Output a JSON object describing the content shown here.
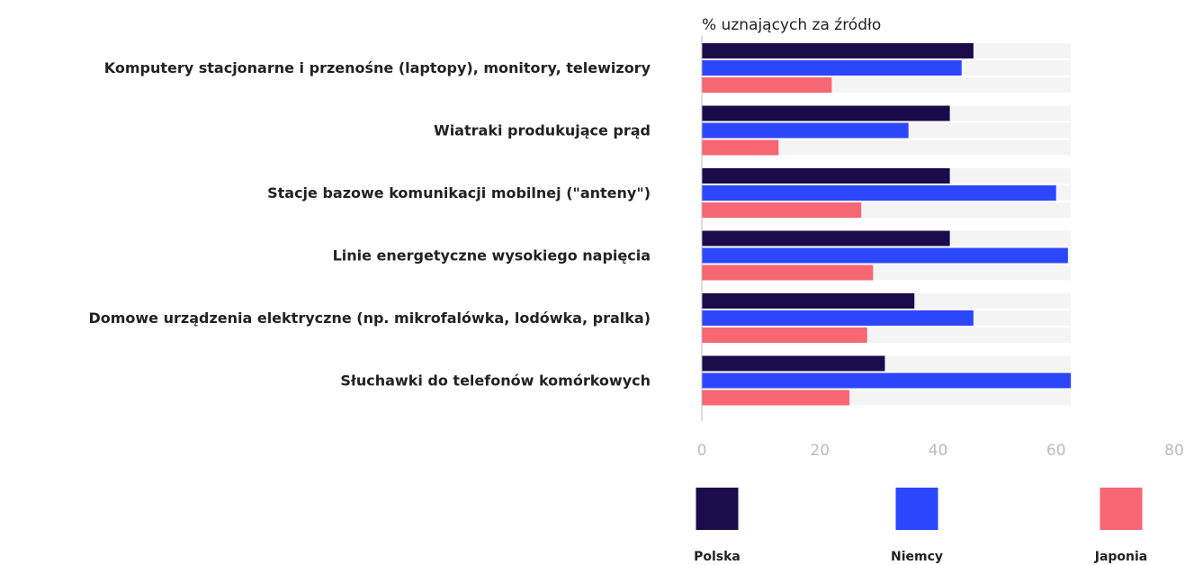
{
  "chart_data": {
    "type": "bar",
    "orientation": "horizontal",
    "xlabel": "% uznających za źródło",
    "categories": [
      "Komputery stacjonarne i przenośne (laptopy), monitory, telewizory",
      "Wiatraki produkujące prąd",
      "Stacje bazowe komunikacji mobilnej (\"anteny\")",
      "Linie energetyczne wysokiego napięcia",
      "Domowe urządzenia elektryczne (np. mikrofalówka, lodówka, pralka)",
      "Słuchawki do telefonów komórkowych"
    ],
    "series": [
      {
        "name": "Polska",
        "color": "#1a0b4b",
        "values": [
          46,
          42,
          42,
          42,
          36,
          31
        ]
      },
      {
        "name": "Niemcy",
        "color": "#2b46fb",
        "values": [
          44,
          35,
          60,
          62,
          46,
          62.5
        ]
      },
      {
        "name": "Japonia",
        "color": "#f76673",
        "values": [
          22,
          13,
          27,
          29,
          28,
          25
        ]
      }
    ],
    "xlim": [
      0,
      80
    ],
    "xticks": [
      0,
      20,
      40,
      60,
      80
    ]
  }
}
